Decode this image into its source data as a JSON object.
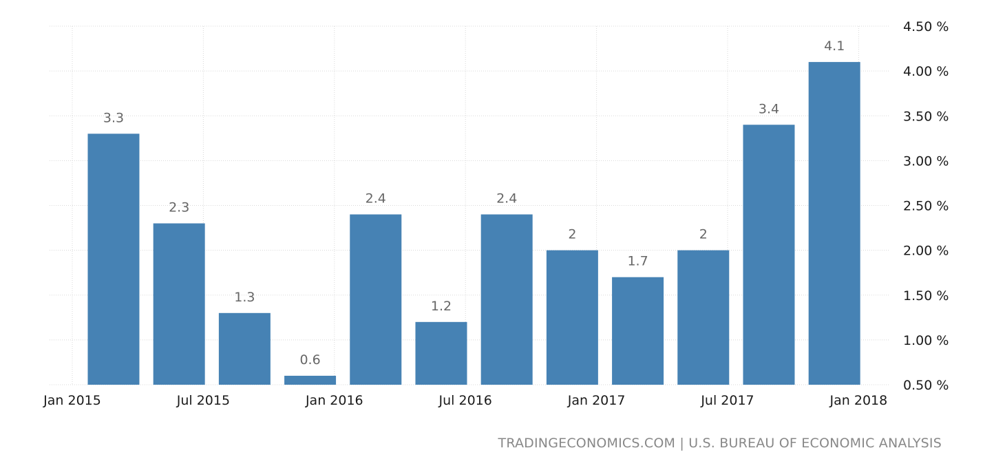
{
  "chart_data": {
    "type": "bar",
    "title": "",
    "xlabel": "",
    "ylabel": "",
    "categories": [
      "2015Q1",
      "2015Q2",
      "2015Q3",
      "2015Q4",
      "2016Q1",
      "2016Q2",
      "2016Q3",
      "2016Q4",
      "2017Q1",
      "2017Q2",
      "2017Q3",
      "2017Q4"
    ],
    "values": [
      3.3,
      2.3,
      1.3,
      0.6,
      2.4,
      1.2,
      2.4,
      2.0,
      1.7,
      2.0,
      3.4,
      4.1
    ],
    "data_labels": [
      "3.3",
      "2.3",
      "1.3",
      "0.6",
      "2.4",
      "1.2",
      "2.4",
      "2",
      "1.7",
      "2",
      "3.4",
      "4.1"
    ],
    "ylim": [
      0.5,
      4.5
    ],
    "y_ticks": [
      {
        "value": 0.5,
        "label": "0.50 %"
      },
      {
        "value": 1.0,
        "label": "1.00 %"
      },
      {
        "value": 1.5,
        "label": "1.50 %"
      },
      {
        "value": 2.0,
        "label": "2.00 %"
      },
      {
        "value": 2.5,
        "label": "2.50 %"
      },
      {
        "value": 3.0,
        "label": "3.00 %"
      },
      {
        "value": 3.5,
        "label": "3.50 %"
      },
      {
        "value": 4.0,
        "label": "4.00 %"
      },
      {
        "value": 4.5,
        "label": "4.50 %"
      }
    ],
    "x_ticks": [
      {
        "position": 0,
        "label": "Jan 2015"
      },
      {
        "position": 2,
        "label": "Jul 2015"
      },
      {
        "position": 4,
        "label": "Jan 2016"
      },
      {
        "position": 6,
        "label": "Jul 2016"
      },
      {
        "position": 8,
        "label": "Jan 2017"
      },
      {
        "position": 10,
        "label": "Jul 2017"
      },
      {
        "position": 12,
        "label": "Jan 2018"
      }
    ],
    "y_axis_side": "right",
    "grid": true,
    "legend": "none",
    "bar_color": "#4682b4",
    "data_label_color": "#666666",
    "grid_color": "#d8d8d8"
  },
  "footer": {
    "source_text": "TRADINGECONOMICS.COM | U.S. BUREAU OF ECONOMIC ANALYSIS"
  }
}
